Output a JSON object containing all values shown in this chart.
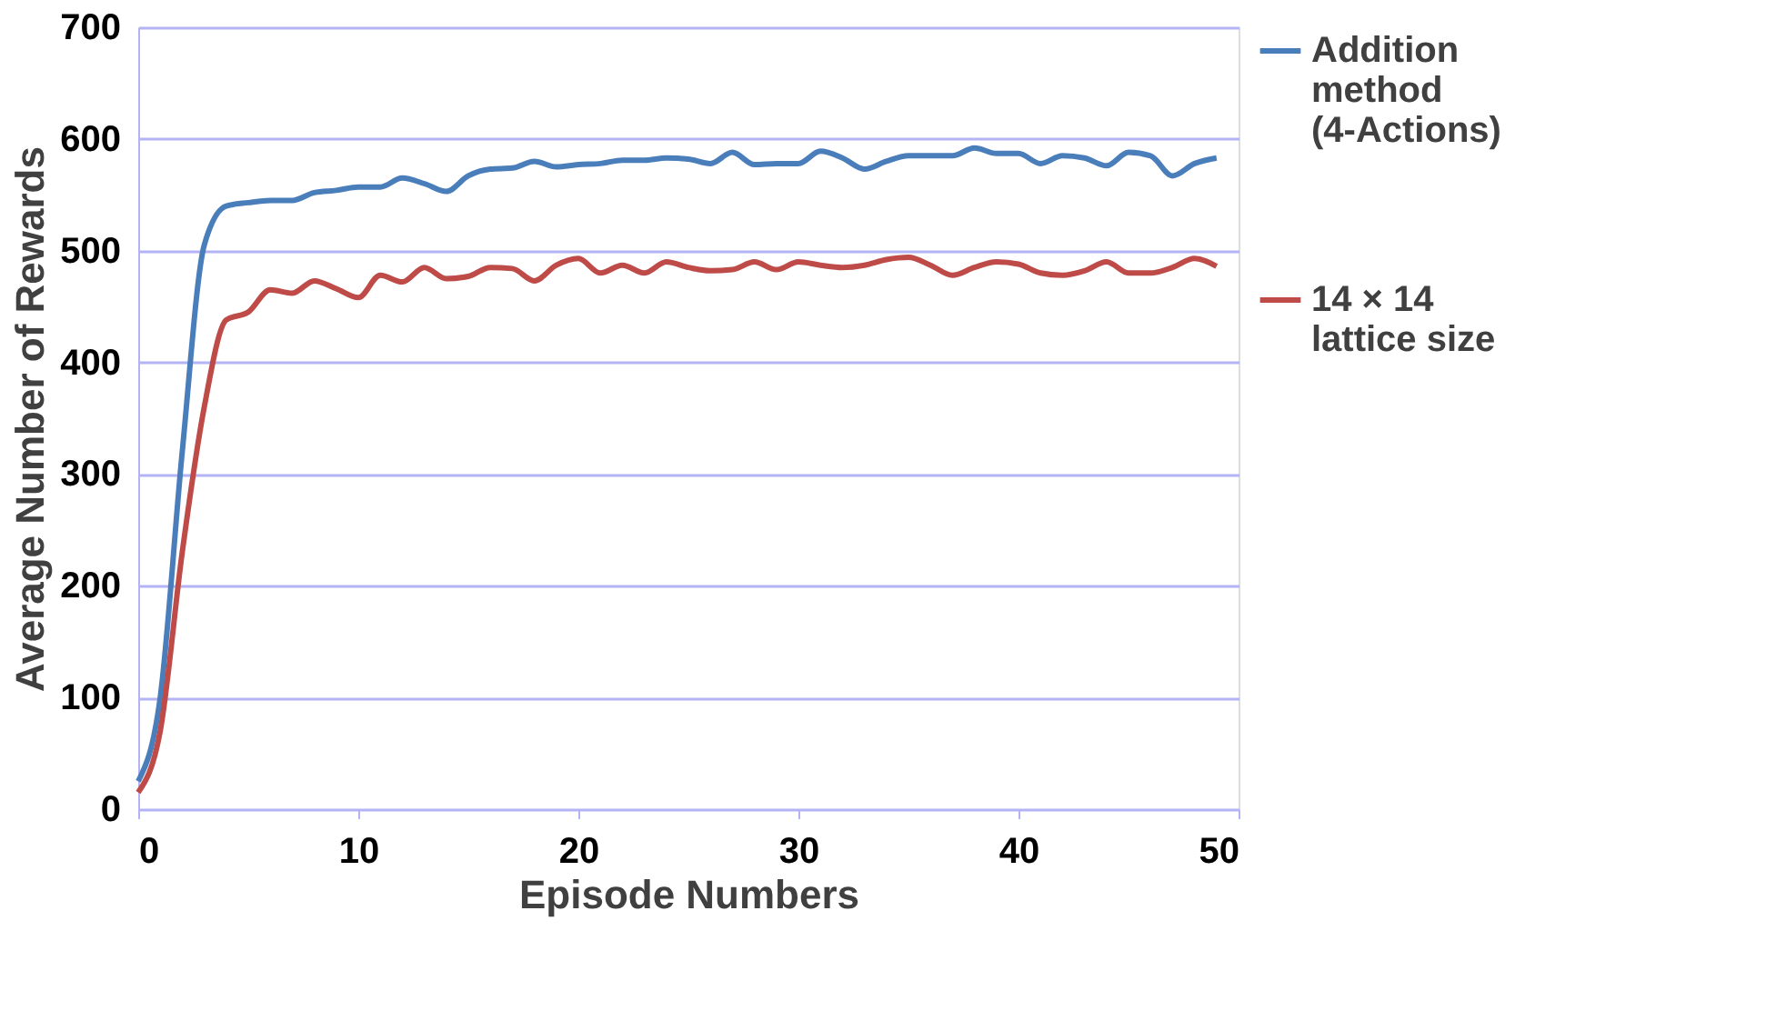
{
  "chart_data": {
    "type": "line",
    "xlabel": "Episode Numbers",
    "ylabel": "Average Number  of Rewards",
    "x": [
      0,
      1,
      2,
      3,
      4,
      5,
      6,
      7,
      8,
      9,
      10,
      11,
      12,
      13,
      14,
      15,
      16,
      17,
      18,
      19,
      20,
      21,
      22,
      23,
      24,
      25,
      26,
      27,
      28,
      29,
      30,
      31,
      32,
      33,
      34,
      35,
      36,
      37,
      38,
      39,
      40,
      41,
      42,
      43,
      44,
      45,
      46,
      47,
      48,
      49
    ],
    "series": [
      {
        "name": "Addition method (4-Actions)",
        "color": "#4a7ebb",
        "values": [
          25,
          100,
          320,
          505,
          540,
          543,
          545,
          545,
          552,
          554,
          557,
          557,
          565,
          560,
          553,
          567,
          573,
          574,
          580,
          575,
          577,
          578,
          581,
          581,
          583,
          582,
          578,
          588,
          577,
          578,
          578,
          589,
          583,
          573,
          580,
          585,
          585,
          585,
          592,
          587,
          587,
          578,
          585,
          583,
          576,
          588,
          585,
          567,
          578,
          583
        ]
      },
      {
        "name": "14 × 14 lattice size",
        "color": "#be4b48",
        "values": [
          15,
          70,
          230,
          360,
          438,
          445,
          465,
          462,
          473,
          466,
          458,
          478,
          472,
          485,
          475,
          477,
          485,
          484,
          473,
          487,
          493,
          480,
          487,
          480,
          490,
          485,
          482,
          483,
          490,
          483,
          490,
          487,
          485,
          487,
          492,
          494,
          487,
          478,
          485,
          490,
          488,
          480,
          478,
          482,
          490,
          480,
          480,
          485,
          493,
          486
        ]
      }
    ],
    "xlim": [
      0,
      50
    ],
    "xticks": [
      0,
      10,
      20,
      30,
      40,
      50
    ],
    "ylim": [
      0,
      700
    ],
    "yticks": [
      0,
      100,
      200,
      300,
      400,
      500,
      600,
      700
    ],
    "grid": "y",
    "legend": "right",
    "marker": "none",
    "line_style": "solid"
  }
}
